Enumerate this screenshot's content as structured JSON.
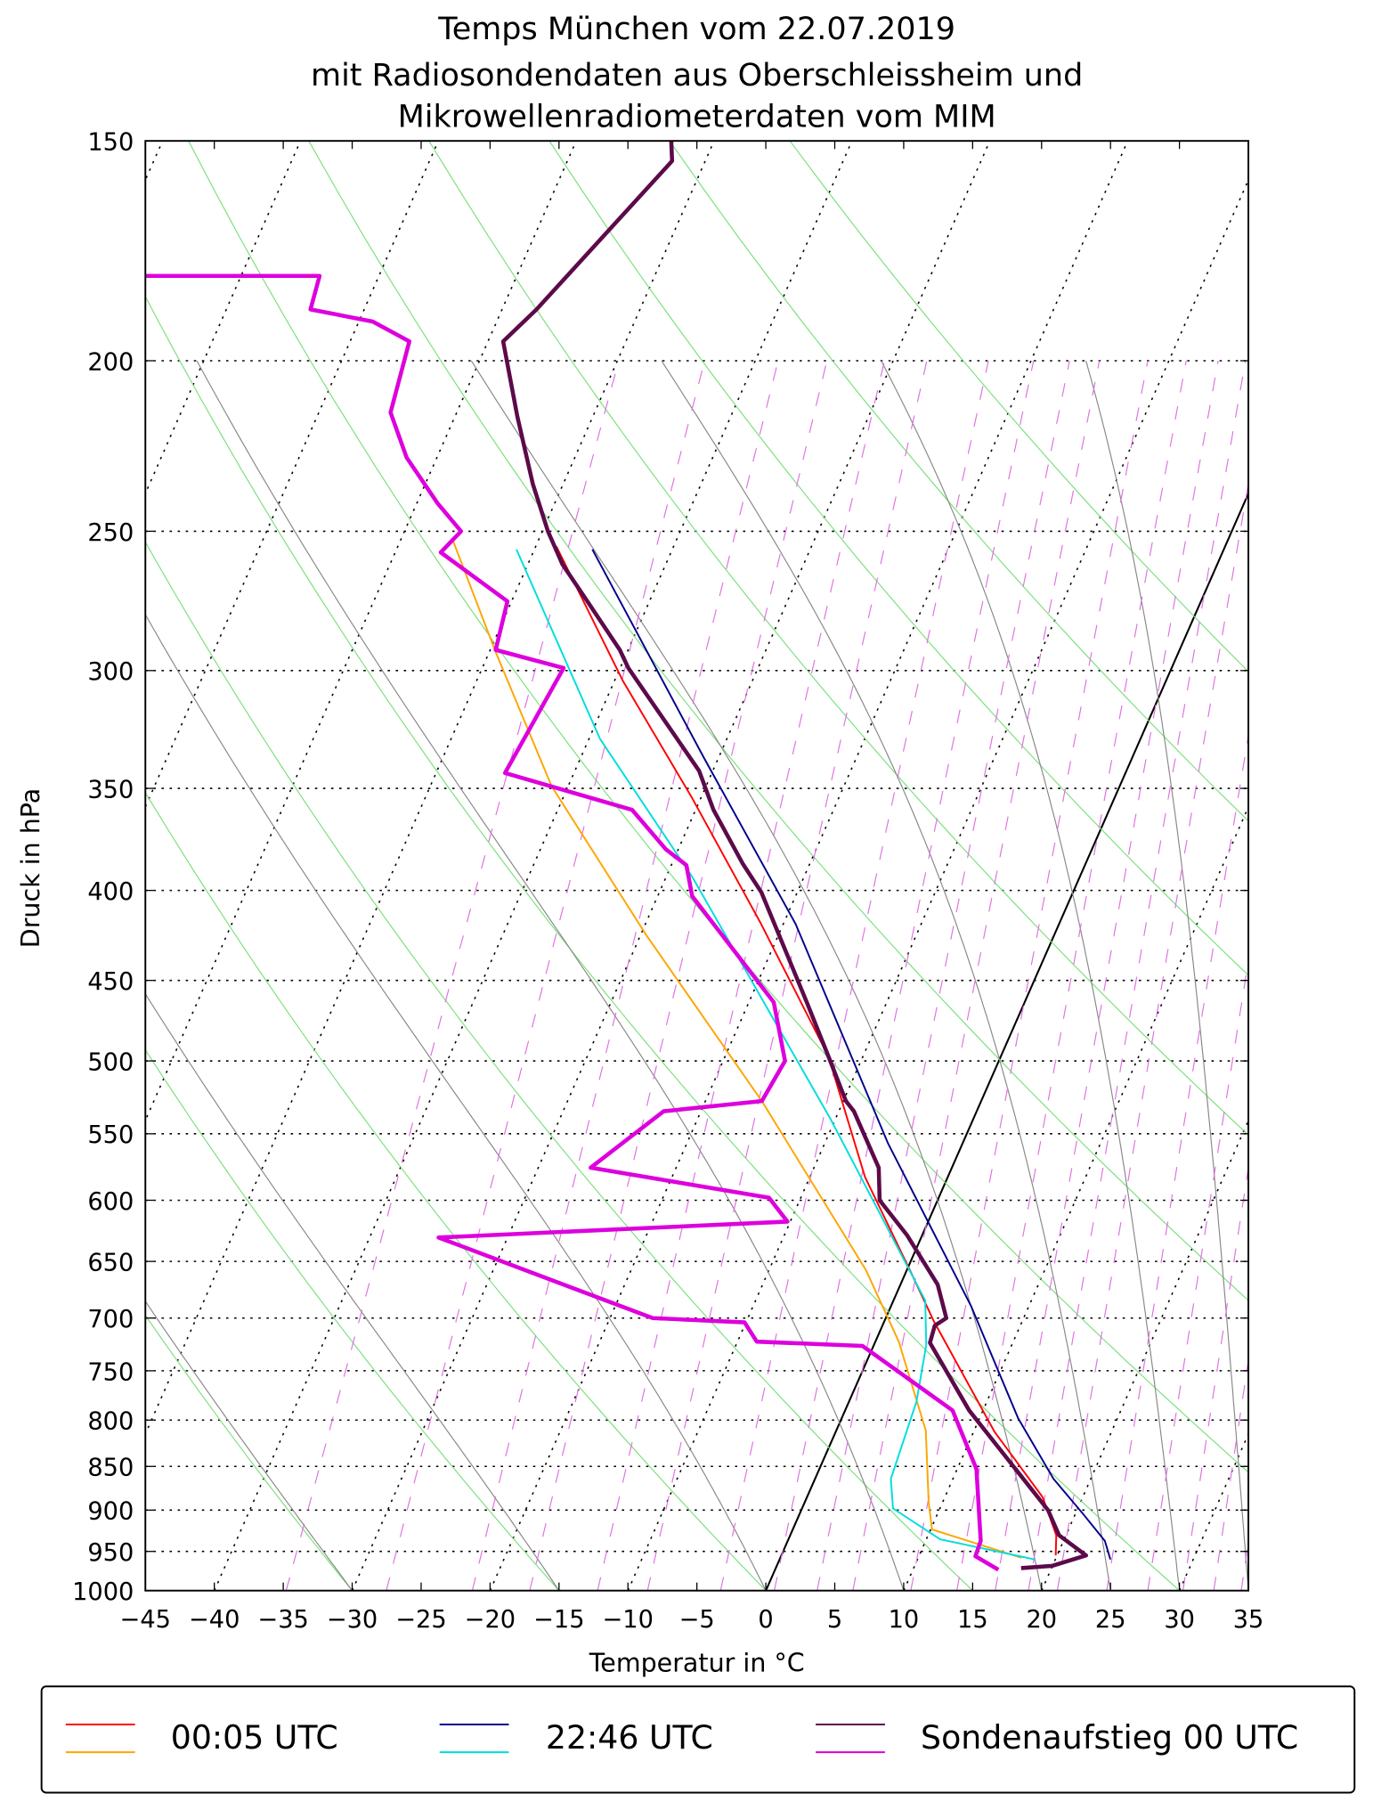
{
  "chart_data": {
    "type": "line",
    "subtype": "skew-T log-p",
    "title": [
      "Temps München vom 22.07.2019",
      "mit Radiosondendaten aus Oberschleissheim und",
      "Mikrowellenradiometerdaten vom MIM"
    ],
    "xlabel": "Temperatur in °C",
    "ylabel": "Druck in hPa",
    "xlim": [
      -45,
      35
    ],
    "ylim": [
      1000,
      150
    ],
    "yscale": "log",
    "x_ticks": [
      "−45",
      "−40",
      "−35",
      "−30",
      "−25",
      "−20",
      "−15",
      "−10",
      "−5",
      "0",
      "5",
      "10",
      "15",
      "20",
      "25",
      "30",
      "35"
    ],
    "y_ticks": [
      150,
      200,
      250,
      300,
      350,
      400,
      450,
      500,
      550,
      600,
      650,
      700,
      750,
      800,
      850,
      900,
      950,
      1000
    ],
    "legend_position": "bottom",
    "legend": [
      {
        "label": "00:05 UTC",
        "colors": [
          "#ff0000",
          "#ffa500"
        ]
      },
      {
        "label": "22:46 UTC",
        "colors": [
          "#00008b",
          "#00dddd"
        ]
      },
      {
        "label": "Sondenaufstieg 00 UTC",
        "colors": [
          "#5c0a4a",
          "#dd00dd"
        ]
      }
    ],
    "series": [
      {
        "name": "00:05 UTC Temperatur",
        "color": "#ff0000",
        "width": 1.5,
        "points": [
          [
            955,
            19.9
          ],
          [
            930,
            19.3
          ],
          [
            885,
            17.1
          ],
          [
            812,
            11.5
          ],
          [
            703,
            3.6
          ],
          [
            661,
            0.5
          ],
          [
            582,
            -6.0
          ],
          [
            497,
            -12.5
          ],
          [
            418,
            -21.6
          ],
          [
            354,
            -30.7
          ],
          [
            304,
            -39.4
          ],
          [
            255,
            -48.5
          ]
        ]
      },
      {
        "name": "00:05 UTC Taupunkt",
        "color": "#ffa500",
        "width": 1.5,
        "points": [
          [
            958,
            17.5
          ],
          [
            923,
            10.1
          ],
          [
            891,
            9.0
          ],
          [
            811,
            6.5
          ],
          [
            722,
            1.7
          ],
          [
            657,
            -3.0
          ],
          [
            527,
            -15.9
          ],
          [
            424,
            -29.6
          ],
          [
            349,
            -41.2
          ],
          [
            293,
            -49.5
          ],
          [
            253,
            -56.2
          ]
        ]
      },
      {
        "name": "22:46 UTC Temperatur",
        "color": "#00008b",
        "width": 1.5,
        "points": [
          [
            960,
            24.0
          ],
          [
            937,
            23.0
          ],
          [
            905,
            20.6
          ],
          [
            864,
            17.3
          ],
          [
            798,
            12.8
          ],
          [
            689,
            5.8
          ],
          [
            557,
            -5.4
          ],
          [
            418,
            -19.1
          ],
          [
            336,
            -31.1
          ],
          [
            256,
            -45.8
          ]
        ]
      },
      {
        "name": "22:46 UTC Taupunkt",
        "color": "#00dddd",
        "width": 1.5,
        "points": [
          [
            960,
            18.5
          ],
          [
            935,
            11.0
          ],
          [
            898,
            6.6
          ],
          [
            864,
            5.5
          ],
          [
            781,
            4.9
          ],
          [
            725,
            3.8
          ],
          [
            684,
            2.3
          ],
          [
            540,
            -10.3
          ],
          [
            393,
            -28.1
          ],
          [
            328,
            -39.2
          ],
          [
            256,
            -51.3
          ]
        ]
      },
      {
        "name": "Sondenaufstieg Temperatur",
        "color": "#5c0a4a",
        "width": 3.5,
        "points": [
          [
            971,
            17.8
          ],
          [
            968,
            20.0
          ],
          [
            955,
            22.1
          ],
          [
            930,
            19.5
          ],
          [
            900,
            17.9
          ],
          [
            790,
            9.0
          ],
          [
            723,
            4.0
          ],
          [
            707,
            3.8
          ],
          [
            700,
            4.4
          ],
          [
            670,
            2.7
          ],
          [
            628,
            -1.1
          ],
          [
            600,
            -4.2
          ],
          [
            575,
            -5.3
          ],
          [
            534,
            -8.9
          ],
          [
            527,
            -9.8
          ],
          [
            497,
            -12.5
          ],
          [
            464,
            -15.7
          ],
          [
            401,
            -22.6
          ],
          [
            386,
            -24.9
          ],
          [
            360,
            -28.7
          ],
          [
            342,
            -31.0
          ],
          [
            299,
            -39.4
          ],
          [
            292,
            -40.6
          ],
          [
            274,
            -44.5
          ],
          [
            261,
            -47.5
          ],
          [
            250,
            -49.6
          ],
          [
            235,
            -52.2
          ],
          [
            215,
            -55.5
          ],
          [
            195,
            -58.9
          ],
          [
            187,
            -57.5
          ],
          [
            154,
            -52.4
          ],
          [
            150,
            -53.1
          ]
        ]
      },
      {
        "name": "Sondenaufstieg Taupunkt",
        "color": "#dd00dd",
        "width": 3.5,
        "points": [
          [
            973,
            16.2
          ],
          [
            956,
            14.1
          ],
          [
            937,
            14.0
          ],
          [
            853,
            11.4
          ],
          [
            790,
            7.8
          ],
          [
            726,
            -0.8
          ],
          [
            722,
            -8.6
          ],
          [
            704,
            -10.1
          ],
          [
            700,
            -16.9
          ],
          [
            630,
            -35.0
          ],
          [
            617,
            -10.2
          ],
          [
            598,
            -12.3
          ],
          [
            575,
            -26.2
          ],
          [
            534,
            -22.7
          ],
          [
            527,
            -15.9
          ],
          [
            500,
            -15.5
          ],
          [
            463,
            -18.2
          ],
          [
            403,
            -27.5
          ],
          [
            387,
            -28.9
          ],
          [
            379,
            -30.9
          ],
          [
            360,
            -34.6
          ],
          [
            343,
            -45.0
          ],
          [
            299,
            -44.1
          ],
          [
            292,
            -49.6
          ],
          [
            274,
            -50.3
          ],
          [
            257,
            -56.7
          ],
          [
            250,
            -55.9
          ],
          [
            241,
            -58.5
          ],
          [
            227,
            -62.2
          ],
          [
            214,
            -64.8
          ],
          [
            195,
            -65.7
          ],
          [
            190,
            -69.0
          ],
          [
            187,
            -73.9
          ],
          [
            179,
            -74.3
          ],
          [
            179,
            -87.0
          ]
        ]
      }
    ],
    "background": {
      "highlighted_isotherm": 0,
      "isotherm_step": 10,
      "dry_adiabats_t0": [
        -30,
        -15,
        0,
        15,
        30,
        45,
        60,
        75,
        90,
        105,
        120
      ],
      "moist_adiabats_t0": [
        -30,
        -15,
        0,
        10,
        20,
        25,
        30,
        35
      ],
      "mixing_ratios_gkg": [
        0.2,
        0.4,
        0.7,
        1,
        1.5,
        2,
        3,
        4,
        5,
        6,
        8,
        10,
        12,
        14,
        16,
        20,
        24,
        28,
        32,
        36,
        40,
        48
      ]
    }
  }
}
